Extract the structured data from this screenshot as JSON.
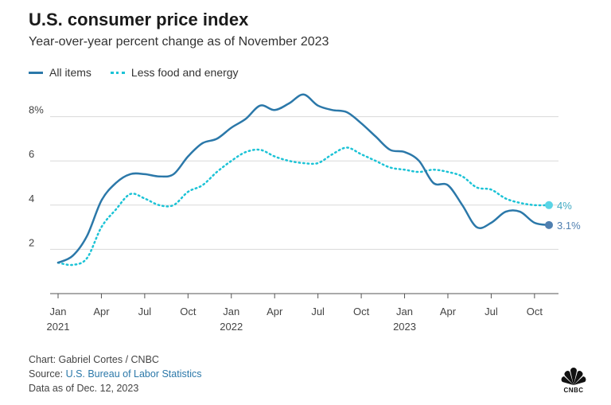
{
  "header": {
    "title": "U.S. consumer price index",
    "subtitle": "Year-over-year percent change as of November 2023"
  },
  "legend": {
    "all_items": "All items",
    "less_food_energy": "Less food and energy"
  },
  "colors": {
    "all_items": "#2b78a9",
    "less_food_energy": "#1cc3d6",
    "grid": "#d9d9d9",
    "axis": "#555555"
  },
  "chart_data": {
    "type": "line",
    "title": "U.S. consumer price index",
    "subtitle": "Year-over-year percent change as of November 2023",
    "xlabel": "",
    "ylabel": "",
    "x": [
      "2021-01",
      "2021-02",
      "2021-03",
      "2021-04",
      "2021-05",
      "2021-06",
      "2021-07",
      "2021-08",
      "2021-09",
      "2021-10",
      "2021-11",
      "2021-12",
      "2022-01",
      "2022-02",
      "2022-03",
      "2022-04",
      "2022-05",
      "2022-06",
      "2022-07",
      "2022-08",
      "2022-09",
      "2022-10",
      "2022-11",
      "2022-12",
      "2023-01",
      "2023-02",
      "2023-03",
      "2023-04",
      "2023-05",
      "2023-06",
      "2023-07",
      "2023-08",
      "2023-09",
      "2023-10",
      "2023-11"
    ],
    "series": [
      {
        "name": "All items",
        "values": [
          1.4,
          1.7,
          2.6,
          4.2,
          5.0,
          5.4,
          5.4,
          5.3,
          5.4,
          6.2,
          6.8,
          7.0,
          7.5,
          7.9,
          8.5,
          8.3,
          8.6,
          9.0,
          8.5,
          8.3,
          8.2,
          7.7,
          7.1,
          6.5,
          6.4,
          6.0,
          5.0,
          4.9,
          4.0,
          3.0,
          3.2,
          3.7,
          3.7,
          3.2,
          3.1
        ]
      },
      {
        "name": "Less food and energy",
        "values": [
          1.4,
          1.3,
          1.6,
          3.0,
          3.8,
          4.5,
          4.3,
          4.0,
          4.0,
          4.6,
          4.9,
          5.5,
          6.0,
          6.4,
          6.5,
          6.2,
          6.0,
          5.9,
          5.9,
          6.3,
          6.6,
          6.3,
          6.0,
          5.7,
          5.6,
          5.5,
          5.6,
          5.5,
          5.3,
          4.8,
          4.7,
          4.3,
          4.1,
          4.0,
          4.0
        ]
      }
    ],
    "ylim": [
      0,
      10
    ],
    "y_ticks": [
      2,
      4,
      6,
      8
    ],
    "y_tick_labels": [
      "2",
      "4",
      "6",
      "8%"
    ],
    "x_ticks": [
      {
        "label": "Jan",
        "year": "2021",
        "index": 0
      },
      {
        "label": "Apr",
        "year": "",
        "index": 3
      },
      {
        "label": "Jul",
        "year": "",
        "index": 6
      },
      {
        "label": "Oct",
        "year": "",
        "index": 9
      },
      {
        "label": "Jan",
        "year": "2022",
        "index": 12
      },
      {
        "label": "Apr",
        "year": "",
        "index": 15
      },
      {
        "label": "Jul",
        "year": "",
        "index": 18
      },
      {
        "label": "Oct",
        "year": "",
        "index": 21
      },
      {
        "label": "Jan",
        "year": "2023",
        "index": 24
      },
      {
        "label": "Apr",
        "year": "",
        "index": 27
      },
      {
        "label": "Jul",
        "year": "",
        "index": 30
      },
      {
        "label": "Oct",
        "year": "",
        "index": 33
      }
    ],
    "end_labels": [
      {
        "series": "Less food and energy",
        "text": "4%"
      },
      {
        "series": "All items",
        "text": "3.1%"
      }
    ],
    "grid": true,
    "legend_position": "top-left"
  },
  "footer": {
    "credit": "Chart: Gabriel Cortes / CNBC",
    "source_prefix": "Source: ",
    "source_link": "U.S. Bureau of Labor Statistics",
    "data_as_of": "Data as of Dec. 12, 2023"
  },
  "logo": {
    "icon": "peacock-icon",
    "text": "CNBC"
  }
}
